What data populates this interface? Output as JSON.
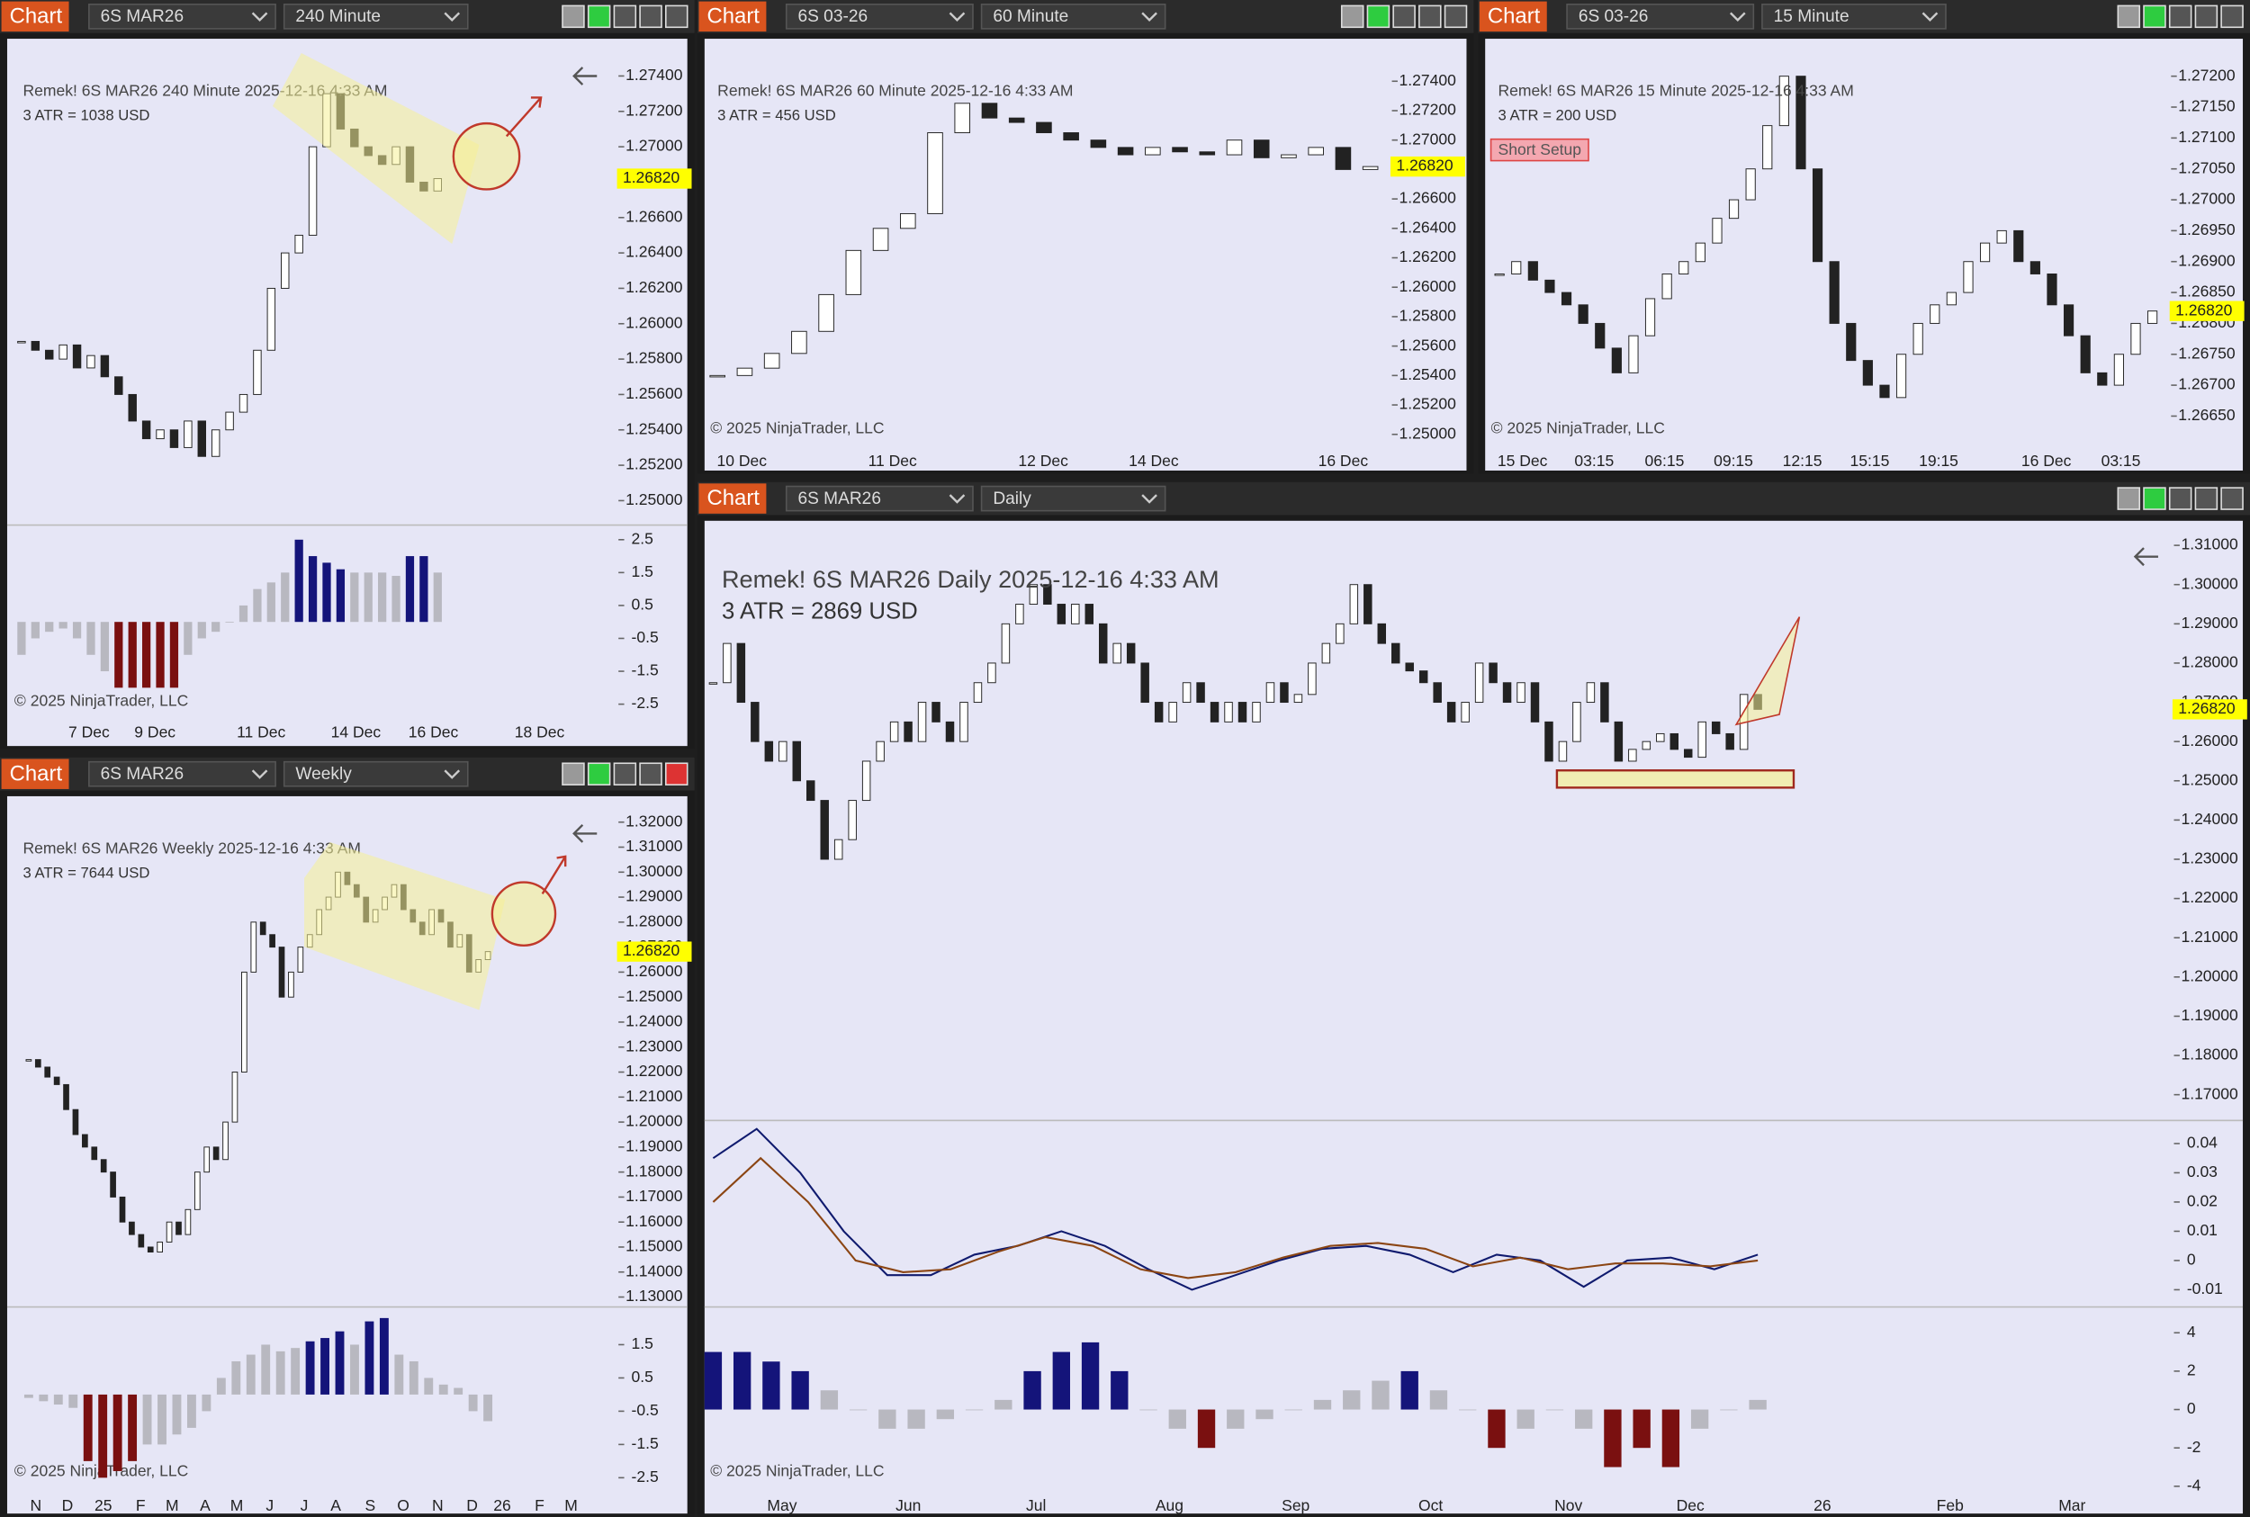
{
  "windows": [
    {
      "tab": "Chart",
      "instrument": "6S MAR26",
      "interval": "240 Minute",
      "header": "Remek!  6S MAR26  240 Minute  2025-12-16 4:33 AM",
      "atr": "3 ATR = 1038 USD",
      "copyright": "© 2025 NinjaTrader, LLC",
      "last_price": {
        "value": 1.2682,
        "label": "1.26820"
      },
      "price_axis": {
        "ylim": [
          1.2487,
          1.2757
        ],
        "ticks": [
          {
            "value": 1.274,
            "label": "1.27400"
          },
          {
            "value": 1.272,
            "label": "1.27200"
          },
          {
            "value": 1.27,
            "label": "1.27000"
          },
          {
            "value": 1.268,
            "label": "1.26800"
          },
          {
            "value": 1.266,
            "label": "1.26600"
          },
          {
            "value": 1.264,
            "label": "1.26400"
          },
          {
            "value": 1.262,
            "label": "1.26200"
          },
          {
            "value": 1.26,
            "label": "1.26000"
          },
          {
            "value": 1.258,
            "label": "1.25800"
          },
          {
            "value": 1.256,
            "label": "1.25600"
          },
          {
            "value": 1.254,
            "label": "1.25400"
          },
          {
            "value": 1.252,
            "label": "1.25200"
          },
          {
            "value": 1.25,
            "label": "1.25000"
          }
        ]
      },
      "closes": [
        1.259,
        1.2585,
        1.258,
        1.2588,
        1.2575,
        1.2582,
        1.257,
        1.256,
        1.2545,
        1.2535,
        1.254,
        1.253,
        1.2545,
        1.2525,
        1.254,
        1.255,
        1.256,
        1.2585,
        1.262,
        1.264,
        1.265,
        1.27,
        1.273,
        1.271,
        1.27,
        1.2695,
        1.269,
        1.27,
        1.268,
        1.2675,
        1.2682
      ],
      "x_labels": [
        "7 Dec",
        "9 Dec",
        "11 Dec",
        "14 Dec",
        "16 Dec",
        "18 Dec"
      ],
      "panels": [
        {
          "ylim": [
            -2.9,
            2.9
          ],
          "ticks": [
            2.5,
            1.5,
            0.5,
            -0.5,
            -1.5,
            -2.5
          ],
          "histogram": [
            -1,
            -0.5,
            -0.3,
            -0.2,
            -0.5,
            -1,
            -1.5,
            -2,
            -2,
            -2,
            -2,
            -2,
            -1,
            -0.5,
            -0.3,
            0,
            0.5,
            1,
            1.2,
            1.5,
            2.5,
            2,
            1.8,
            1.6,
            1.5,
            1.5,
            1.5,
            1.4,
            2,
            2,
            1.5
          ]
        }
      ]
    },
    {
      "tab": "Chart",
      "instrument": "6S 03-26",
      "interval": "60 Minute",
      "header": "Remek!  6S MAR26  60 Minute  2025-12-16 4:33 AM",
      "atr": "3 ATR = 456 USD",
      "copyright": "© 2025 NinjaTrader, LLC",
      "last_price": {
        "value": 1.2682,
        "label": "1.26820"
      },
      "price_axis": {
        "ylim": [
          1.2491,
          1.2764
        ],
        "ticks": [
          {
            "value": 1.274,
            "label": "1.27400"
          },
          {
            "value": 1.272,
            "label": "1.27200"
          },
          {
            "value": 1.27,
            "label": "1.27000"
          },
          {
            "value": 1.268,
            "label": "1.26800"
          },
          {
            "value": 1.266,
            "label": "1.26600"
          },
          {
            "value": 1.264,
            "label": "1.26400"
          },
          {
            "value": 1.262,
            "label": "1.26200"
          },
          {
            "value": 1.26,
            "label": "1.26000"
          },
          {
            "value": 1.258,
            "label": "1.25800"
          },
          {
            "value": 1.256,
            "label": "1.25600"
          },
          {
            "value": 1.254,
            "label": "1.25400"
          },
          {
            "value": 1.252,
            "label": "1.25200"
          },
          {
            "value": 1.25,
            "label": "1.25000"
          }
        ]
      },
      "closes": [
        1.254,
        1.2545,
        1.2555,
        1.257,
        1.2595,
        1.2625,
        1.264,
        1.265,
        1.2705,
        1.2725,
        1.2715,
        1.2712,
        1.2705,
        1.27,
        1.2695,
        1.269,
        1.2695,
        1.2692,
        1.269,
        1.27,
        1.2688,
        1.269,
        1.2695,
        1.268,
        1.2682
      ],
      "x_labels": [
        "10 Dec",
        "11 Dec",
        "12 Dec",
        "14 Dec",
        "16 Dec"
      ],
      "panels": []
    },
    {
      "tab": "Chart",
      "instrument": "6S 03-26",
      "interval": "15 Minute",
      "header": "Remek!  6S MAR26  15 Minute  2025-12-16 4:33 AM",
      "atr": "3 ATR = 200 USD",
      "copyright": "© 2025 NinjaTrader, LLC",
      "annotation": "Short Setup",
      "last_price": {
        "value": 1.2682,
        "label": "1.26820"
      },
      "price_axis": {
        "ylim": [
          1.26599,
          1.27249
        ],
        "ticks": [
          {
            "value": 1.272,
            "label": "1.27200"
          },
          {
            "value": 1.2715,
            "label": "1.27150"
          },
          {
            "value": 1.271,
            "label": "1.27100"
          },
          {
            "value": 1.2705,
            "label": "1.27050"
          },
          {
            "value": 1.27,
            "label": "1.27000"
          },
          {
            "value": 1.2695,
            "label": "1.26950"
          },
          {
            "value": 1.269,
            "label": "1.26900"
          },
          {
            "value": 1.2685,
            "label": "1.26850"
          },
          {
            "value": 1.268,
            "label": "1.26800"
          },
          {
            "value": 1.2675,
            "label": "1.26750"
          },
          {
            "value": 1.267,
            "label": "1.26700"
          },
          {
            "value": 1.2665,
            "label": "1.26650"
          }
        ]
      },
      "closes": [
        1.2688,
        1.269,
        1.2687,
        1.2685,
        1.2683,
        1.268,
        1.2676,
        1.2672,
        1.2678,
        1.2684,
        1.2688,
        1.269,
        1.2693,
        1.2697,
        1.27,
        1.2705,
        1.2712,
        1.272,
        1.2705,
        1.269,
        1.268,
        1.2674,
        1.267,
        1.2668,
        1.2675,
        1.268,
        1.2683,
        1.2685,
        1.269,
        1.2693,
        1.2695,
        1.269,
        1.2688,
        1.2683,
        1.2678,
        1.2672,
        1.267,
        1.2675,
        1.268,
        1.2682
      ],
      "x_labels": [
        "15 Dec",
        "03:15",
        "06:15",
        "09:15",
        "12:15",
        "15:15",
        "19:15",
        "16 Dec",
        "03:15"
      ],
      "panels": []
    },
    {
      "tab": "Chart",
      "instrument": "6S MAR26",
      "interval": "Weekly",
      "header": "Remek!  6S MAR26  Weekly  2025-12-16 4:33 AM",
      "atr": "3 ATR = 7644 USD",
      "copyright": "© 2025 NinjaTrader, LLC",
      "last_price": {
        "value": 1.2682,
        "label": "1.26820"
      },
      "price_axis": {
        "ylim": [
          1.1266,
          1.3275
        ],
        "ticks": [
          {
            "value": 1.32,
            "label": "1.32000"
          },
          {
            "value": 1.31,
            "label": "1.31000"
          },
          {
            "value": 1.3,
            "label": "1.30000"
          },
          {
            "value": 1.29,
            "label": "1.29000"
          },
          {
            "value": 1.28,
            "label": "1.28000"
          },
          {
            "value": 1.27,
            "label": "1.27000"
          },
          {
            "value": 1.26,
            "label": "1.26000"
          },
          {
            "value": 1.25,
            "label": "1.25000"
          },
          {
            "value": 1.24,
            "label": "1.24000"
          },
          {
            "value": 1.23,
            "label": "1.23000"
          },
          {
            "value": 1.22,
            "label": "1.22000"
          },
          {
            "value": 1.21,
            "label": "1.21000"
          },
          {
            "value": 1.2,
            "label": "1.20000"
          },
          {
            "value": 1.19,
            "label": "1.19000"
          },
          {
            "value": 1.18,
            "label": "1.18000"
          },
          {
            "value": 1.17,
            "label": "1.17000"
          },
          {
            "value": 1.16,
            "label": "1.16000"
          },
          {
            "value": 1.15,
            "label": "1.15000"
          },
          {
            "value": 1.14,
            "label": "1.14000"
          },
          {
            "value": 1.13,
            "label": "1.13000"
          }
        ]
      },
      "closes": [
        1.225,
        1.222,
        1.218,
        1.215,
        1.205,
        1.195,
        1.19,
        1.185,
        1.18,
        1.17,
        1.16,
        1.155,
        1.15,
        1.148,
        1.152,
        1.16,
        1.155,
        1.165,
        1.18,
        1.19,
        1.185,
        1.2,
        1.22,
        1.26,
        1.28,
        1.275,
        1.27,
        1.25,
        1.26,
        1.27,
        1.275,
        1.285,
        1.29,
        1.3,
        1.295,
        1.29,
        1.28,
        1.285,
        1.29,
        1.295,
        1.285,
        1.28,
        1.275,
        1.285,
        1.28,
        1.27,
        1.275,
        1.26,
        1.265,
        1.2682
      ],
      "x_labels": [
        "N",
        "D",
        "25",
        "F",
        "M",
        "A",
        "M",
        "J",
        "J",
        "A",
        "S",
        "O",
        "N",
        "D",
        "26",
        "F",
        "M"
      ],
      "panels": [
        {
          "ylim": [
            -2.93,
            2.59
          ],
          "ticks": [
            1.5,
            0.5,
            -0.5,
            -1.5,
            -2.5
          ],
          "histogram": [
            -0.1,
            -0.2,
            -0.3,
            -0.4,
            -2,
            -2.5,
            -2.3,
            -2,
            -1.5,
            -1.5,
            -1.2,
            -1,
            -0.5,
            0.5,
            1,
            1.2,
            1.5,
            1.3,
            1.4,
            1.6,
            1.7,
            1.9,
            1.5,
            2.2,
            2.3,
            1.2,
            1,
            0.5,
            0.3,
            0.2,
            -0.5,
            -0.8
          ]
        }
      ]
    },
    {
      "tab": "Chart",
      "instrument": "6S MAR26",
      "interval": "Daily",
      "header": "Remek!  6S MAR26  Daily  2025-12-16 4:33 AM",
      "atr": "3 ATR = 2869 USD",
      "copyright": "© 2025 NinjaTrader, LLC",
      "last_price": {
        "value": 1.2682,
        "label": "1.26820"
      },
      "price_axis": {
        "ylim": [
          1.1638,
          1.3148
        ],
        "ticks": [
          {
            "value": 1.31,
            "label": "1.31000"
          },
          {
            "value": 1.3,
            "label": "1.30000"
          },
          {
            "value": 1.29,
            "label": "1.29000"
          },
          {
            "value": 1.28,
            "label": "1.28000"
          },
          {
            "value": 1.27,
            "label": "1.27000"
          },
          {
            "value": 1.26,
            "label": "1.26000"
          },
          {
            "value": 1.25,
            "label": "1.25000"
          },
          {
            "value": 1.24,
            "label": "1.24000"
          },
          {
            "value": 1.23,
            "label": "1.23000"
          },
          {
            "value": 1.22,
            "label": "1.22000"
          },
          {
            "value": 1.21,
            "label": "1.21000"
          },
          {
            "value": 1.2,
            "label": "1.20000"
          },
          {
            "value": 1.19,
            "label": "1.19000"
          },
          {
            "value": 1.18,
            "label": "1.18000"
          },
          {
            "value": 1.17,
            "label": "1.17000"
          }
        ]
      },
      "closes": [
        1.275,
        1.285,
        1.27,
        1.26,
        1.255,
        1.26,
        1.25,
        1.245,
        1.23,
        1.235,
        1.245,
        1.255,
        1.26,
        1.265,
        1.26,
        1.27,
        1.265,
        1.26,
        1.27,
        1.275,
        1.28,
        1.29,
        1.295,
        1.3,
        1.295,
        1.29,
        1.295,
        1.29,
        1.28,
        1.285,
        1.28,
        1.27,
        1.265,
        1.27,
        1.275,
        1.27,
        1.265,
        1.27,
        1.265,
        1.27,
        1.275,
        1.27,
        1.272,
        1.28,
        1.285,
        1.29,
        1.3,
        1.29,
        1.285,
        1.28,
        1.278,
        1.275,
        1.27,
        1.265,
        1.27,
        1.28,
        1.275,
        1.27,
        1.275,
        1.265,
        1.255,
        1.26,
        1.27,
        1.275,
        1.265,
        1.255,
        1.258,
        1.26,
        1.262,
        1.258,
        1.256,
        1.265,
        1.262,
        1.258,
        1.272,
        1.2682
      ],
      "x_labels": [
        "May",
        "Jun",
        "Jul",
        "Aug",
        "Sep",
        "Oct",
        "Nov",
        "Dec",
        "26",
        "Feb",
        "Mar"
      ],
      "panels": [
        {
          "ylim": [
            -0.0154,
            0.0474
          ],
          "ticks": [
            0.04,
            0.03,
            0.02,
            0.01,
            0,
            -0.01
          ],
          "lines": [
            {
              "color": "#0f1a6e",
              "values": [
                0.035,
                0.045,
                0.03,
                0.01,
                -0.005,
                -0.005,
                0.002,
                0.005,
                0.01,
                0.005,
                -0.003,
                -0.01,
                -0.005,
                0,
                0.004,
                0.005,
                0.002,
                -0.004,
                0.002,
                0,
                -0.009,
                0,
                0.001,
                -0.003,
                0.002
              ]
            },
            {
              "color": "#8b4513",
              "values": [
                0.02,
                0.035,
                0.02,
                0,
                -0.004,
                -0.003,
                0.003,
                0.008,
                0.005,
                -0.003,
                -0.006,
                -0.004,
                0.001,
                0.005,
                0.006,
                0.004,
                -0.002,
                0.001,
                -0.003,
                -0.001,
                -0.001,
                -0.002,
                0
              ]
            }
          ]
        },
        {
          "ylim": [
            -4.3,
            5.27
          ],
          "ticks": [
            4,
            2,
            0,
            -2,
            -4
          ],
          "histogram": [
            3,
            3,
            2.5,
            2,
            1,
            0,
            -1,
            -1,
            -0.5,
            0,
            0.5,
            2,
            3,
            3.5,
            2,
            0,
            -1,
            -2,
            -1,
            -0.5,
            0,
            0.5,
            1,
            1.5,
            2,
            1,
            0,
            -2,
            -1,
            0,
            -1,
            -3,
            -2,
            -3,
            -1,
            0,
            0.5
          ]
        }
      ]
    }
  ]
}
